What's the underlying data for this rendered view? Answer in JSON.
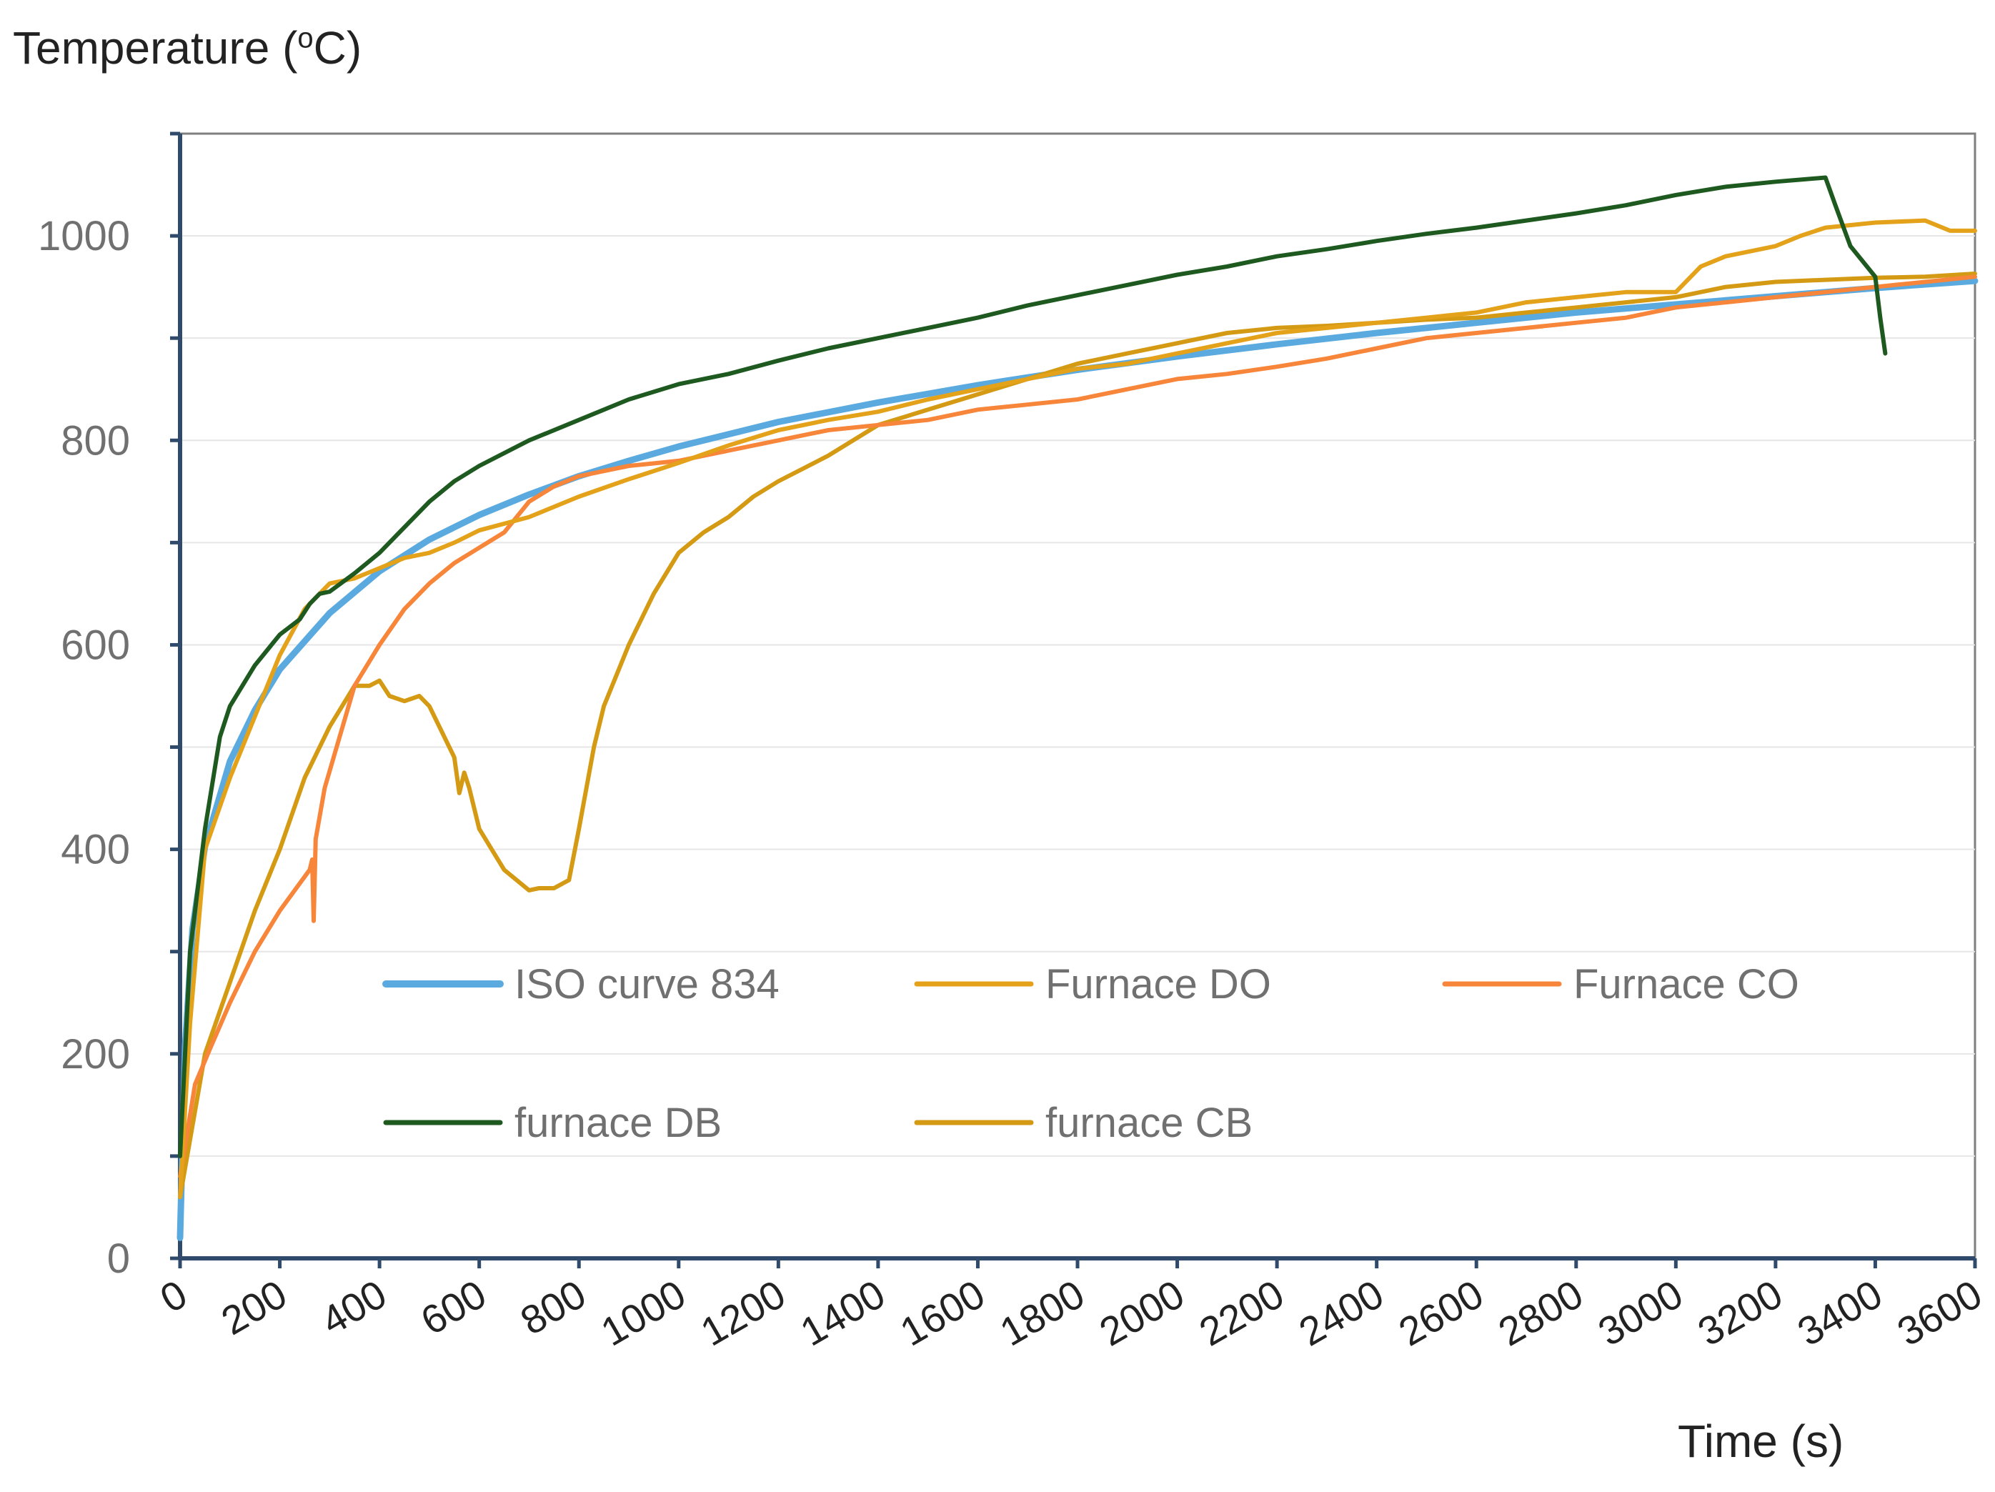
{
  "chart_data": {
    "type": "line",
    "ylabel": {
      "prefix": "Temperature (",
      "sup": "o",
      "suffix": "C)"
    },
    "xlabel": "Time (s)",
    "xlim": [
      0,
      3600
    ],
    "ylim": [
      0,
      1100
    ],
    "x_ticks": [
      0,
      200,
      400,
      600,
      800,
      1000,
      1200,
      1400,
      1600,
      1800,
      2000,
      2200,
      2400,
      2600,
      2800,
      3000,
      3200,
      3400,
      3600
    ],
    "x_tick_labels": [
      "0",
      "200",
      "400",
      "600",
      "800",
      "1000",
      "1200",
      "1400",
      "1600",
      "1800",
      "2000",
      "2200",
      "2400",
      "2600",
      "2800",
      "3000",
      "3200",
      "3400",
      "3600"
    ],
    "y_ticks": [
      0,
      200,
      400,
      600,
      800,
      1000
    ],
    "y_tick_labels": [
      "0",
      "200",
      "400",
      "600",
      "800",
      "1000"
    ],
    "y_minor_ticks": [
      100,
      300,
      500,
      700,
      900,
      1100
    ],
    "grid": "horizontal",
    "legend_placement": "center, inside plot",
    "series": [
      {
        "name": "ISO curve 834",
        "color": "#5aaadf",
        "width": 9,
        "x": [
          0,
          10,
          25,
          50,
          100,
          150,
          200,
          300,
          400,
          500,
          600,
          700,
          800,
          900,
          1000,
          1200,
          1400,
          1600,
          1800,
          2000,
          2200,
          2400,
          2600,
          2800,
          3000,
          3200,
          3400,
          3600
        ],
        "y": [
          20,
          207,
          322,
          403,
          486,
          536,
          576,
          631,
          672,
          703,
          727,
          747,
          765,
          780,
          794,
          818,
          837,
          854,
          869,
          882,
          894,
          905,
          915,
          925,
          933,
          941,
          949,
          956
        ]
      },
      {
        "name": "Furnace DO",
        "color": "#e3a21a",
        "width": 6,
        "x": [
          0,
          20,
          50,
          100,
          150,
          200,
          250,
          300,
          350,
          400,
          450,
          500,
          550,
          600,
          700,
          800,
          900,
          1000,
          1100,
          1200,
          1300,
          1400,
          1500,
          1600,
          1700,
          1800,
          1900,
          2000,
          2100,
          2200,
          2300,
          2400,
          2500,
          2600,
          2700,
          2800,
          2900,
          3000,
          3050,
          3100,
          3150,
          3200,
          3250,
          3300,
          3400,
          3500,
          3550,
          3600
        ],
        "y": [
          60,
          230,
          400,
          470,
          530,
          590,
          635,
          660,
          665,
          675,
          685,
          690,
          700,
          712,
          725,
          745,
          762,
          778,
          795,
          810,
          820,
          828,
          840,
          850,
          860,
          870,
          875,
          885,
          895,
          905,
          910,
          915,
          920,
          925,
          935,
          940,
          945,
          945,
          970,
          980,
          985,
          990,
          1000,
          1008,
          1013,
          1015,
          1005,
          1005
        ]
      },
      {
        "name": "Furnace CO",
        "color": "#f7853a",
        "width": 6,
        "x": [
          0,
          30,
          60,
          100,
          150,
          200,
          230,
          260,
          265,
          268,
          272,
          290,
          320,
          350,
          400,
          450,
          500,
          550,
          600,
          650,
          700,
          750,
          800,
          850,
          900,
          1000,
          1100,
          1200,
          1300,
          1400,
          1500,
          1600,
          1700,
          1800,
          1900,
          2000,
          2100,
          2200,
          2300,
          2400,
          2500,
          2600,
          2700,
          2800,
          2900,
          3000,
          3100,
          3200,
          3300,
          3400,
          3500,
          3600
        ],
        "y": [
          80,
          170,
          205,
          250,
          300,
          340,
          360,
          380,
          390,
          330,
          410,
          460,
          510,
          560,
          600,
          635,
          660,
          680,
          695,
          710,
          740,
          755,
          765,
          770,
          775,
          780,
          790,
          800,
          810,
          815,
          820,
          830,
          835,
          840,
          850,
          860,
          865,
          872,
          880,
          890,
          900,
          905,
          910,
          915,
          920,
          930,
          935,
          940,
          945,
          950,
          955,
          960
        ]
      },
      {
        "name": "furnace DB",
        "color": "#1e5a20",
        "width": 6,
        "x": [
          0,
          20,
          50,
          80,
          100,
          150,
          200,
          240,
          260,
          280,
          300,
          350,
          400,
          450,
          500,
          550,
          600,
          700,
          800,
          900,
          1000,
          1100,
          1200,
          1300,
          1400,
          1500,
          1600,
          1700,
          1800,
          1900,
          2000,
          2100,
          2200,
          2300,
          2400,
          2500,
          2600,
          2700,
          2800,
          2900,
          3000,
          3100,
          3200,
          3300,
          3320,
          3350,
          3400,
          3410,
          3420
        ],
        "y": [
          100,
          300,
          420,
          510,
          540,
          580,
          610,
          625,
          640,
          650,
          652,
          670,
          690,
          715,
          740,
          760,
          775,
          800,
          820,
          840,
          855,
          865,
          878,
          890,
          900,
          910,
          920,
          932,
          942,
          952,
          962,
          970,
          980,
          987,
          995,
          1002,
          1008,
          1015,
          1022,
          1030,
          1040,
          1048,
          1053,
          1057,
          1030,
          990,
          960,
          920,
          885
        ]
      },
      {
        "name": "furnace CB",
        "color": "#d49a14",
        "width": 6,
        "x": [
          0,
          50,
          100,
          150,
          200,
          250,
          300,
          350,
          380,
          400,
          420,
          450,
          480,
          500,
          550,
          560,
          570,
          580,
          600,
          650,
          700,
          720,
          750,
          780,
          800,
          830,
          850,
          900,
          950,
          1000,
          1050,
          1100,
          1150,
          1200,
          1300,
          1400,
          1500,
          1600,
          1700,
          1800,
          1900,
          2000,
          2100,
          2200,
          2300,
          2400,
          2500,
          2600,
          2700,
          2800,
          2900,
          3000,
          3100,
          3200,
          3300,
          3400,
          3500,
          3600
        ],
        "y": [
          60,
          200,
          270,
          340,
          400,
          470,
          520,
          560,
          560,
          565,
          550,
          545,
          550,
          540,
          490,
          455,
          475,
          460,
          420,
          380,
          360,
          362,
          362,
          370,
          420,
          500,
          540,
          600,
          650,
          690,
          710,
          725,
          745,
          760,
          785,
          815,
          830,
          845,
          860,
          875,
          885,
          895,
          905,
          910,
          912,
          915,
          918,
          920,
          925,
          930,
          935,
          940,
          950,
          955,
          957,
          959,
          960,
          963
        ]
      }
    ]
  }
}
